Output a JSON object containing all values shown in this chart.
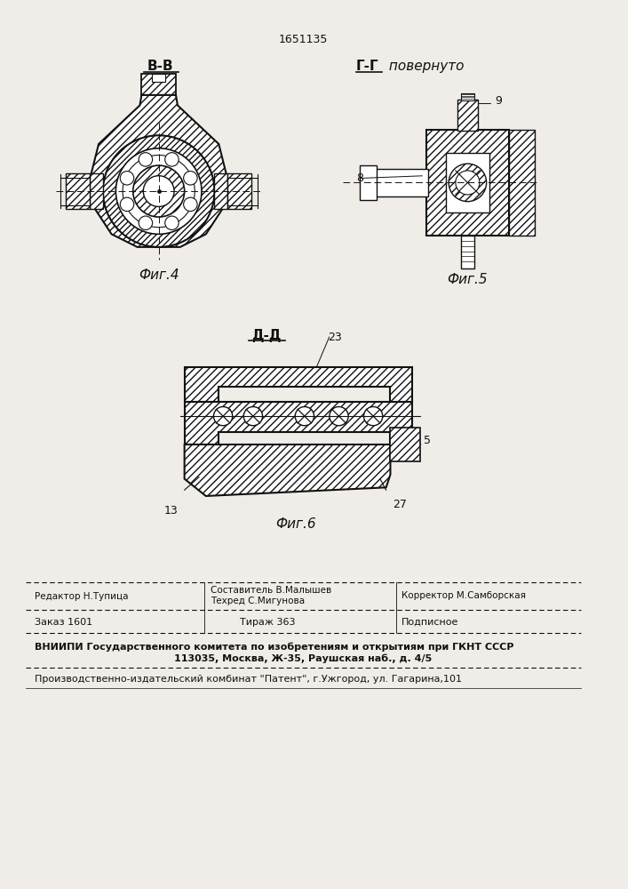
{
  "bg_color": "#f0ede8",
  "patent_number": "1651135",
  "fig4_section": "В-В",
  "fig4_label": "Фиг.4",
  "fig5_section": "Г-Г повернуто",
  "fig5_label": "Фиг.5",
  "fig6_section": "Д-Д",
  "fig6_label": "Фиг.6",
  "lc": "#111111",
  "footer_editor": "Редактор Н.Тупица",
  "footer_compiler": "Составитель В.Малышев",
  "footer_techred": "Техред С.Мигунова",
  "footer_corrector": "Корректор М.Самборская",
  "footer_order": "Заказ 1601",
  "footer_tirazh": "Тираж 363",
  "footer_podpisnoe": "Подписное",
  "footer_vnipi": "ВНИИПИ Государственного комитета по изобретениям и открытиям при ГКНТ СССР",
  "footer_address": "113035, Москва, Ж-35, Раушская наб., д. 4/5",
  "footer_patent_plant": "Производственно-издательский комбинат \"Патент\", г.Ужгород, ул. Гагарина,101"
}
